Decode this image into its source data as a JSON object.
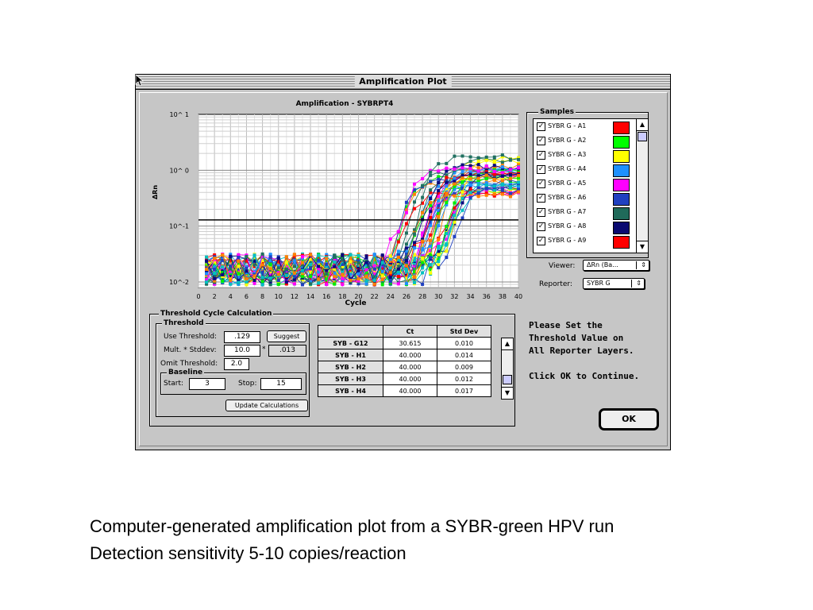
{
  "window": {
    "title": "Amplification Plot"
  },
  "chart_data": {
    "type": "line",
    "title": "Amplification - SYBRPT4",
    "xlabel": "Cycle",
    "ylabel": "ΔRn",
    "xlim": [
      0,
      40
    ],
    "ylim_log10": [
      -2.1,
      1
    ],
    "y_scale": "log",
    "x_ticks": [
      "0",
      "2",
      "4",
      "6",
      "8",
      "10",
      "12",
      "14",
      "16",
      "18",
      "20",
      "22",
      "24",
      "26",
      "28",
      "30",
      "32",
      "34",
      "36",
      "38",
      "40"
    ],
    "y_ticks": [
      "10^ 1",
      "10^ 0",
      "10^-1",
      "10^-2"
    ],
    "threshold": 0.129,
    "grid": true,
    "series_colors": [
      "#ff0000",
      "#00ee00",
      "#ffff00",
      "#1e90ff",
      "#ff00ff",
      "#2040c0",
      "#207060",
      "#0a0a80",
      "#00c0c0",
      "#ff8000"
    ]
  },
  "samples": {
    "title": "Samples",
    "items": [
      {
        "label": "SYBR G - A1",
        "color": "#ff0000"
      },
      {
        "label": "SYBR G - A2",
        "color": "#00ff00"
      },
      {
        "label": "SYBR G - A3",
        "color": "#ffff00"
      },
      {
        "label": "SYBR G - A4",
        "color": "#1e90ff"
      },
      {
        "label": "SYBR G - A5",
        "color": "#ff00ff"
      },
      {
        "label": "SYBR G - A6",
        "color": "#2040c0"
      },
      {
        "label": "SYBR G - A7",
        "color": "#206a5a"
      },
      {
        "label": "SYBR G - A8",
        "color": "#0a0a70"
      },
      {
        "label": "SYBR G - A9",
        "color": "#ff0000"
      }
    ]
  },
  "viewer": {
    "label": "Viewer:",
    "value": "ΔRn (Ba..."
  },
  "reporter": {
    "label": "Reporter:",
    "value": "SYBR G"
  },
  "threshold_calc": {
    "title": "Threshold Cycle Calculation",
    "threshold_title": "Threshold",
    "use_threshold_label": "Use Threshold:",
    "use_threshold_value": ".129",
    "suggest_label": "Suggest",
    "mult_label": "Mult. * Stddev:",
    "mult_value": "10.0",
    "times": "*",
    "mult_result": ".013",
    "omit_label": "Omit Threshold:",
    "omit_value": "2.0",
    "baseline_title": "Baseline",
    "start_label": "Start:",
    "start_value": "3",
    "stop_label": "Stop:",
    "stop_value": "15",
    "update_label": "Update Calculations"
  },
  "ct_table": {
    "headers": [
      "Ct",
      "Std Dev"
    ],
    "rows": [
      {
        "name": "SYB - G12",
        "ct": "30.615",
        "sd": "0.010"
      },
      {
        "name": "SYB - H1",
        "ct": "40.000",
        "sd": "0.014"
      },
      {
        "name": "SYB - H2",
        "ct": "40.000",
        "sd": "0.009"
      },
      {
        "name": "SYB - H3",
        "ct": "40.000",
        "sd": "0.012"
      },
      {
        "name": "SYB - H4",
        "ct": "40.000",
        "sd": "0.017"
      }
    ]
  },
  "message": "Please Set the\nThreshold Value on\nAll Reporter Layers.\n\nClick OK to Continue.",
  "ok_label": "OK",
  "caption": {
    "line1": "Computer-generated amplification plot from a SYBR-green HPV run",
    "line2": "Detection sensitivity 5-10 copies/reaction"
  }
}
